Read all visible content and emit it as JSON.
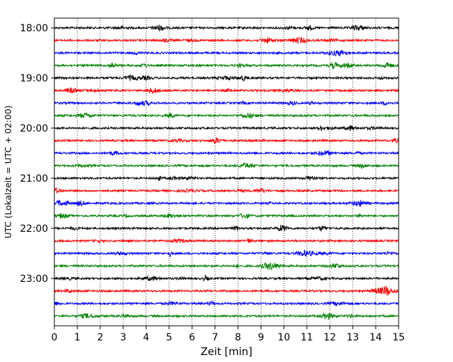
{
  "chart_data": {
    "type": "line",
    "title": "",
    "xlabel": "Zeit  [min]",
    "ylabel": "UTC (Lokalzeit = UTC + 02:00)",
    "xlim": [
      0,
      15
    ],
    "x_ticks": [
      "0",
      "1",
      "2",
      "3",
      "4",
      "5",
      "6",
      "7",
      "8",
      "9",
      "10",
      "11",
      "12",
      "13",
      "14",
      "15"
    ],
    "y_ticks": [
      {
        "label": "18:00",
        "row": 0
      },
      {
        "label": "19:00",
        "row": 4
      },
      {
        "label": "20:00",
        "row": 8
      },
      {
        "label": "21:00",
        "row": 12
      },
      {
        "label": "22:00",
        "row": 16
      },
      {
        "label": "23:00",
        "row": 20
      }
    ],
    "grid": {
      "vertical": "dotted",
      "horizontal": false
    },
    "rows_per_hour": 4,
    "row_minutes": 15,
    "start_time": "18:00",
    "row_count": 24,
    "color_cycle": [
      "#000000",
      "#ff0000",
      "#0000ff",
      "#008000"
    ]
  }
}
